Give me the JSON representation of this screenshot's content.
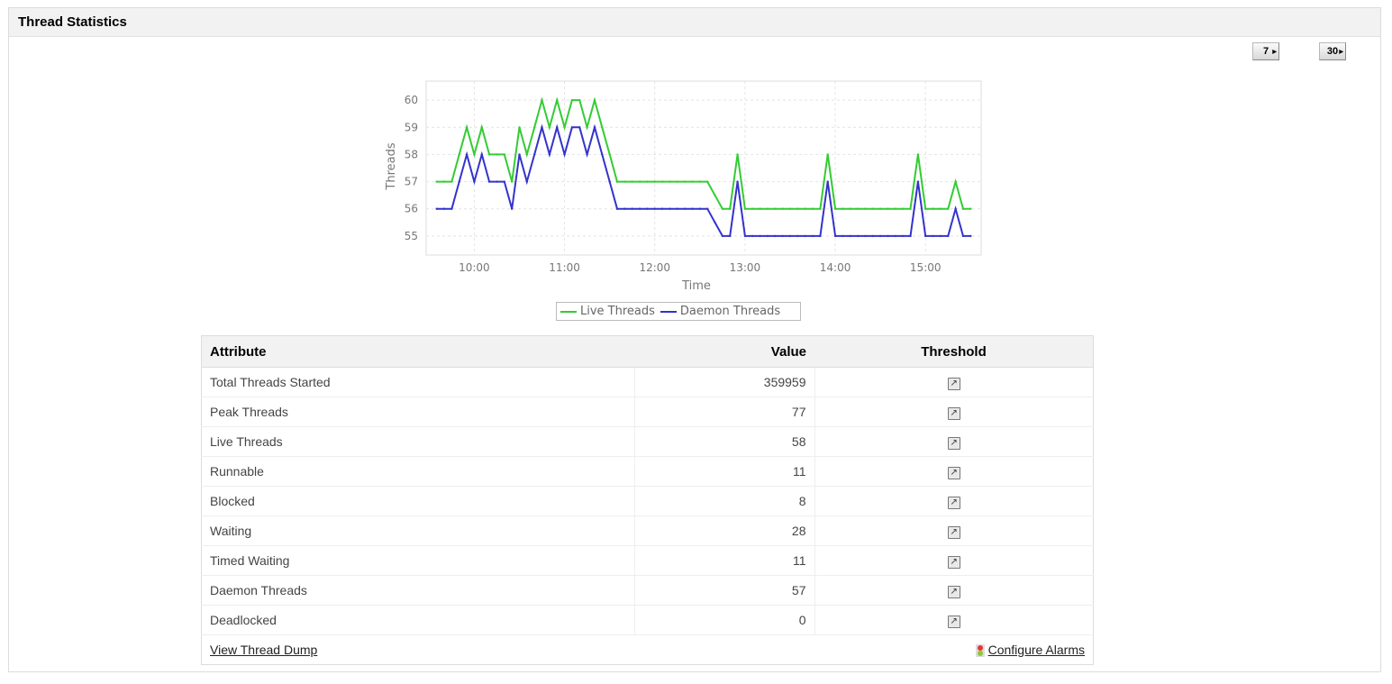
{
  "panel": {
    "title": "Thread Statistics"
  },
  "period_buttons": [
    {
      "label": "7"
    },
    {
      "label": "30"
    }
  ],
  "chart_data": {
    "type": "line",
    "xlabel": "Time",
    "ylabel": "Threads",
    "x_ticks": [
      "10:00",
      "11:00",
      "12:00",
      "13:00",
      "14:00",
      "15:00"
    ],
    "y_ticks": [
      55,
      56,
      57,
      58,
      59,
      60
    ],
    "xlim": [
      "09:28",
      "15:37"
    ],
    "ylim": [
      54.3,
      60.7
    ],
    "grid": true,
    "legend_position": "bottom",
    "x": [
      "09:35",
      "09:40",
      "09:45",
      "09:50",
      "09:55",
      "10:00",
      "10:05",
      "10:10",
      "10:15",
      "10:20",
      "10:25",
      "10:30",
      "10:35",
      "10:40",
      "10:45",
      "10:50",
      "10:55",
      "11:00",
      "11:05",
      "11:10",
      "11:15",
      "11:20",
      "11:25",
      "11:30",
      "11:35",
      "11:40",
      "11:45",
      "11:50",
      "11:55",
      "12:00",
      "12:05",
      "12:10",
      "12:15",
      "12:20",
      "12:25",
      "12:30",
      "12:35",
      "12:40",
      "12:45",
      "12:50",
      "12:55",
      "13:00",
      "13:05",
      "13:10",
      "13:15",
      "13:20",
      "13:25",
      "13:30",
      "13:35",
      "13:40",
      "13:45",
      "13:50",
      "13:55",
      "14:00",
      "14:05",
      "14:10",
      "14:15",
      "14:20",
      "14:25",
      "14:30",
      "14:35",
      "14:40",
      "14:45",
      "14:50",
      "14:55",
      "15:00",
      "15:05",
      "15:10",
      "15:15",
      "15:20",
      "15:25",
      "15:30"
    ],
    "series": [
      {
        "name": "Live Threads",
        "color": "#33cc33",
        "values": [
          57,
          57,
          57,
          58,
          59,
          58,
          59,
          58,
          58,
          58,
          57,
          59,
          58,
          59,
          60,
          59,
          60,
          59,
          60,
          60,
          59,
          60,
          59,
          58,
          57,
          57,
          57,
          57,
          57,
          57,
          57,
          57,
          57,
          57,
          57,
          57,
          57,
          56.5,
          56,
          56,
          58,
          56,
          56,
          56,
          56,
          56,
          56,
          56,
          56,
          56,
          56,
          56,
          58,
          56,
          56,
          56,
          56,
          56,
          56,
          56,
          56,
          56,
          56,
          56,
          58,
          56,
          56,
          56,
          56,
          57,
          56,
          56
        ]
      },
      {
        "name": "Daemon Threads",
        "color": "#3333cc",
        "values": [
          56,
          56,
          56,
          57,
          58,
          57,
          58,
          57,
          57,
          57,
          56,
          58,
          57,
          58,
          59,
          58,
          59,
          58,
          59,
          59,
          58,
          59,
          58,
          57,
          56,
          56,
          56,
          56,
          56,
          56,
          56,
          56,
          56,
          56,
          56,
          56,
          56,
          55.5,
          55,
          55,
          57,
          55,
          55,
          55,
          55,
          55,
          55,
          55,
          55,
          55,
          55,
          55,
          57,
          55,
          55,
          55,
          55,
          55,
          55,
          55,
          55,
          55,
          55,
          55,
          57,
          55,
          55,
          55,
          55,
          56,
          55,
          55
        ]
      }
    ]
  },
  "table": {
    "headers": {
      "attribute": "Attribute",
      "value": "Value",
      "threshold": "Threshold"
    },
    "rows": [
      {
        "attribute": "Total Threads Started",
        "value": "359959"
      },
      {
        "attribute": "Peak Threads",
        "value": "77"
      },
      {
        "attribute": "Live Threads",
        "value": "58"
      },
      {
        "attribute": "Runnable",
        "value": "11"
      },
      {
        "attribute": "Blocked",
        "value": "8"
      },
      {
        "attribute": "Waiting",
        "value": "28"
      },
      {
        "attribute": "Timed Waiting",
        "value": "11"
      },
      {
        "attribute": "Daemon Threads",
        "value": "57"
      },
      {
        "attribute": "Deadlocked",
        "value": "0"
      }
    ],
    "threshold_icon": "edit-threshold-icon"
  },
  "footer": {
    "thread_dump_link": "View Thread Dump",
    "configure_alarms_link": "Configure Alarms"
  }
}
